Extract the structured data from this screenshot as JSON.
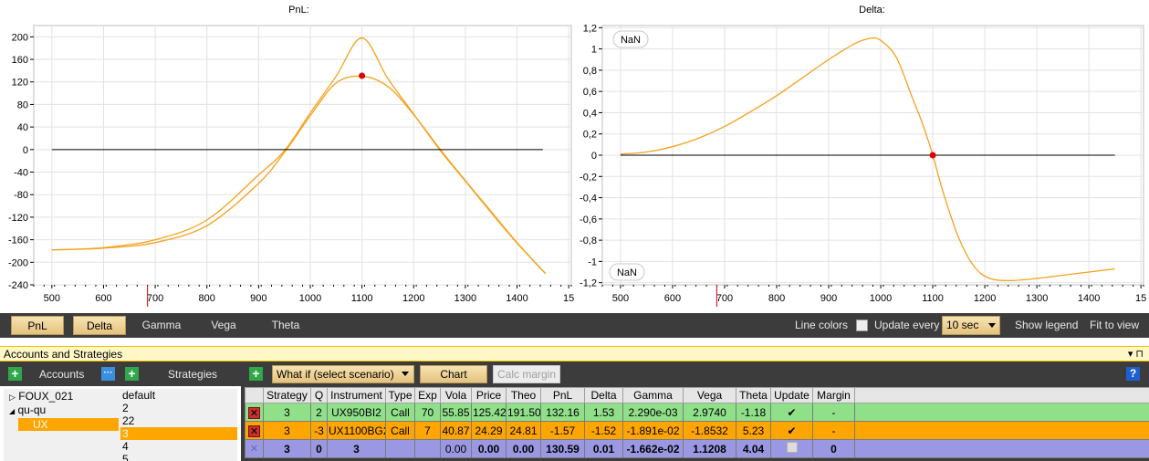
{
  "charts": {
    "pnl": {
      "title": "PnL:",
      "y_ticks": [
        "200",
        "160",
        "120",
        "80",
        "40",
        "0",
        "-40",
        "-80",
        "-120",
        "-160",
        "-200",
        "-240"
      ],
      "x_ticks": [
        "500",
        "600",
        "700",
        "800",
        "900",
        "1000",
        "1100",
        "1200",
        "1300",
        "1400",
        "15"
      ]
    },
    "delta": {
      "title": "Delta:",
      "badge_top": "NaN",
      "badge_bottom": "NaN",
      "y_ticks": [
        "1,2",
        "1",
        "0,8",
        "0,6",
        "0,4",
        "0,2",
        "0",
        "-0,2",
        "-0,4",
        "-0,6",
        "-0,8",
        "-1",
        "-1,2"
      ],
      "x_ticks": [
        "500",
        "600",
        "700",
        "800",
        "900",
        "1000",
        "1100",
        "1200",
        "1300",
        "1400",
        "15"
      ]
    }
  },
  "chart_data": [
    {
      "type": "line",
      "title": "PnL:",
      "xlim": [
        465,
        1505
      ],
      "ylim": [
        -240,
        220
      ],
      "grid": true,
      "series": [
        {
          "x": [
            500,
            600,
            700,
            800,
            900,
            950,
            1000,
            1050,
            1100,
            1150,
            1200,
            1250,
            1300,
            1350,
            1400,
            1455
          ],
          "y": [
            -178,
            -175,
            -165,
            -135,
            -60,
            -5,
            60,
            118,
            130,
            112,
            62,
            2,
            -55,
            -110,
            -165,
            -220
          ]
        },
        {
          "x": [
            500,
            600,
            700,
            800,
            900,
            950,
            1000,
            1050,
            1100,
            1150,
            1200,
            1250,
            1300,
            1350,
            1400,
            1455
          ],
          "y": [
            -178,
            -174,
            -160,
            -125,
            -45,
            -2,
            65,
            130,
            198,
            126,
            63,
            0,
            -56,
            -112,
            -166,
            -220
          ]
        },
        {
          "x": [
            500,
            1450
          ],
          "y": [
            0,
            0
          ]
        }
      ],
      "markers": [
        {
          "x": 1100,
          "y": 131,
          "color": "#e00000"
        }
      ],
      "colors": {
        "curve": "#f5a11c",
        "zero_line": "#000000"
      }
    },
    {
      "type": "line",
      "title": "Delta:",
      "xlim": [
        465,
        1505
      ],
      "ylim": [
        -1.22,
        1.22
      ],
      "grid": true,
      "series": [
        {
          "x": [
            500,
            550,
            600,
            650,
            700,
            750,
            800,
            850,
            900,
            950,
            980,
            1000,
            1030,
            1060,
            1080,
            1100,
            1120,
            1150,
            1180,
            1210,
            1250,
            1300,
            1350,
            1400,
            1450
          ],
          "y": [
            0.01,
            0.03,
            0.08,
            0.16,
            0.27,
            0.41,
            0.56,
            0.73,
            0.9,
            1.05,
            1.1,
            1.08,
            0.92,
            0.55,
            0.3,
            0.0,
            -0.35,
            -0.78,
            -1.05,
            -1.16,
            -1.18,
            -1.16,
            -1.13,
            -1.1,
            -1.07
          ]
        },
        {
          "x": [
            500,
            1450
          ],
          "y": [
            0,
            0
          ]
        }
      ],
      "markers": [
        {
          "x": 1100,
          "y": 0,
          "color": "#e00000"
        }
      ],
      "colors": {
        "curve": "#f5a11c",
        "zero_line": "#000000"
      }
    }
  ],
  "toolbar": {
    "tabs": [
      "PnL",
      "Delta",
      "Gamma",
      "Vega",
      "Theta"
    ],
    "line_colors": "Line colors",
    "update_every": "Update every",
    "interval": "10 sec",
    "show_legend": "Show legend",
    "fit_to_view": "Fit to view"
  },
  "panel": {
    "title": "Accounts and Strategies",
    "pin": "▾ ⊓"
  },
  "accounts": {
    "accounts_label": "Accounts",
    "strategies_label": "Strategies",
    "tree": [
      {
        "label": "FOUX_021",
        "arrow": "▷"
      },
      {
        "label": "qu-qu",
        "arrow": "◢"
      },
      {
        "label": "UX",
        "arrow": ""
      }
    ],
    "strategies": [
      "default",
      "2",
      "22",
      "3",
      "4",
      "5"
    ]
  },
  "grid": {
    "scenario": "What if  (select scenario)",
    "chart_btn": "Chart",
    "calc_margin": "Calc margin",
    "help": "?",
    "columns": [
      "",
      "Strategy",
      "Q",
      "Instrument",
      "Type",
      "Exp",
      "Vola",
      "Price",
      "Theo",
      "PnL",
      "Delta",
      "Gamma",
      "Vega",
      "Theta",
      "Update",
      "Margin",
      ""
    ],
    "rows": [
      {
        "del": "✕",
        "strategy": "3",
        "q": "2",
        "instrument": "UX950BI2",
        "type": "Call",
        "exp": "70",
        "vola": "55.85",
        "price": "125.42",
        "theo": "191.50",
        "pnl": "132.16",
        "delta": "1.53",
        "gamma": "2.290e-03",
        "vega": "2.9740",
        "theta": "-1.18",
        "update": "✔",
        "margin": "-"
      },
      {
        "del": "✕",
        "strategy": "3",
        "q": "-3",
        "instrument": "UX1100BG2",
        "type": "Call",
        "exp": "7",
        "vola": "40.87",
        "price": "24.29",
        "theo": "24.81",
        "pnl": "-1.57",
        "delta": "-1.52",
        "gamma": "-1.891e-02",
        "vega": "-1.8532",
        "theta": "5.23",
        "update": "✔",
        "margin": "-"
      },
      {
        "del": "✕",
        "strategy": "3",
        "q": "0",
        "instrument": "3",
        "type": "",
        "exp": "",
        "vola": "0.00",
        "price": "0.00",
        "theo": "0.00",
        "pnl": "130.59",
        "delta": "0.01",
        "gamma": "-1.662e-02",
        "vega": "1.1208",
        "theta": "4.04",
        "update": "",
        "margin": "0"
      }
    ]
  }
}
